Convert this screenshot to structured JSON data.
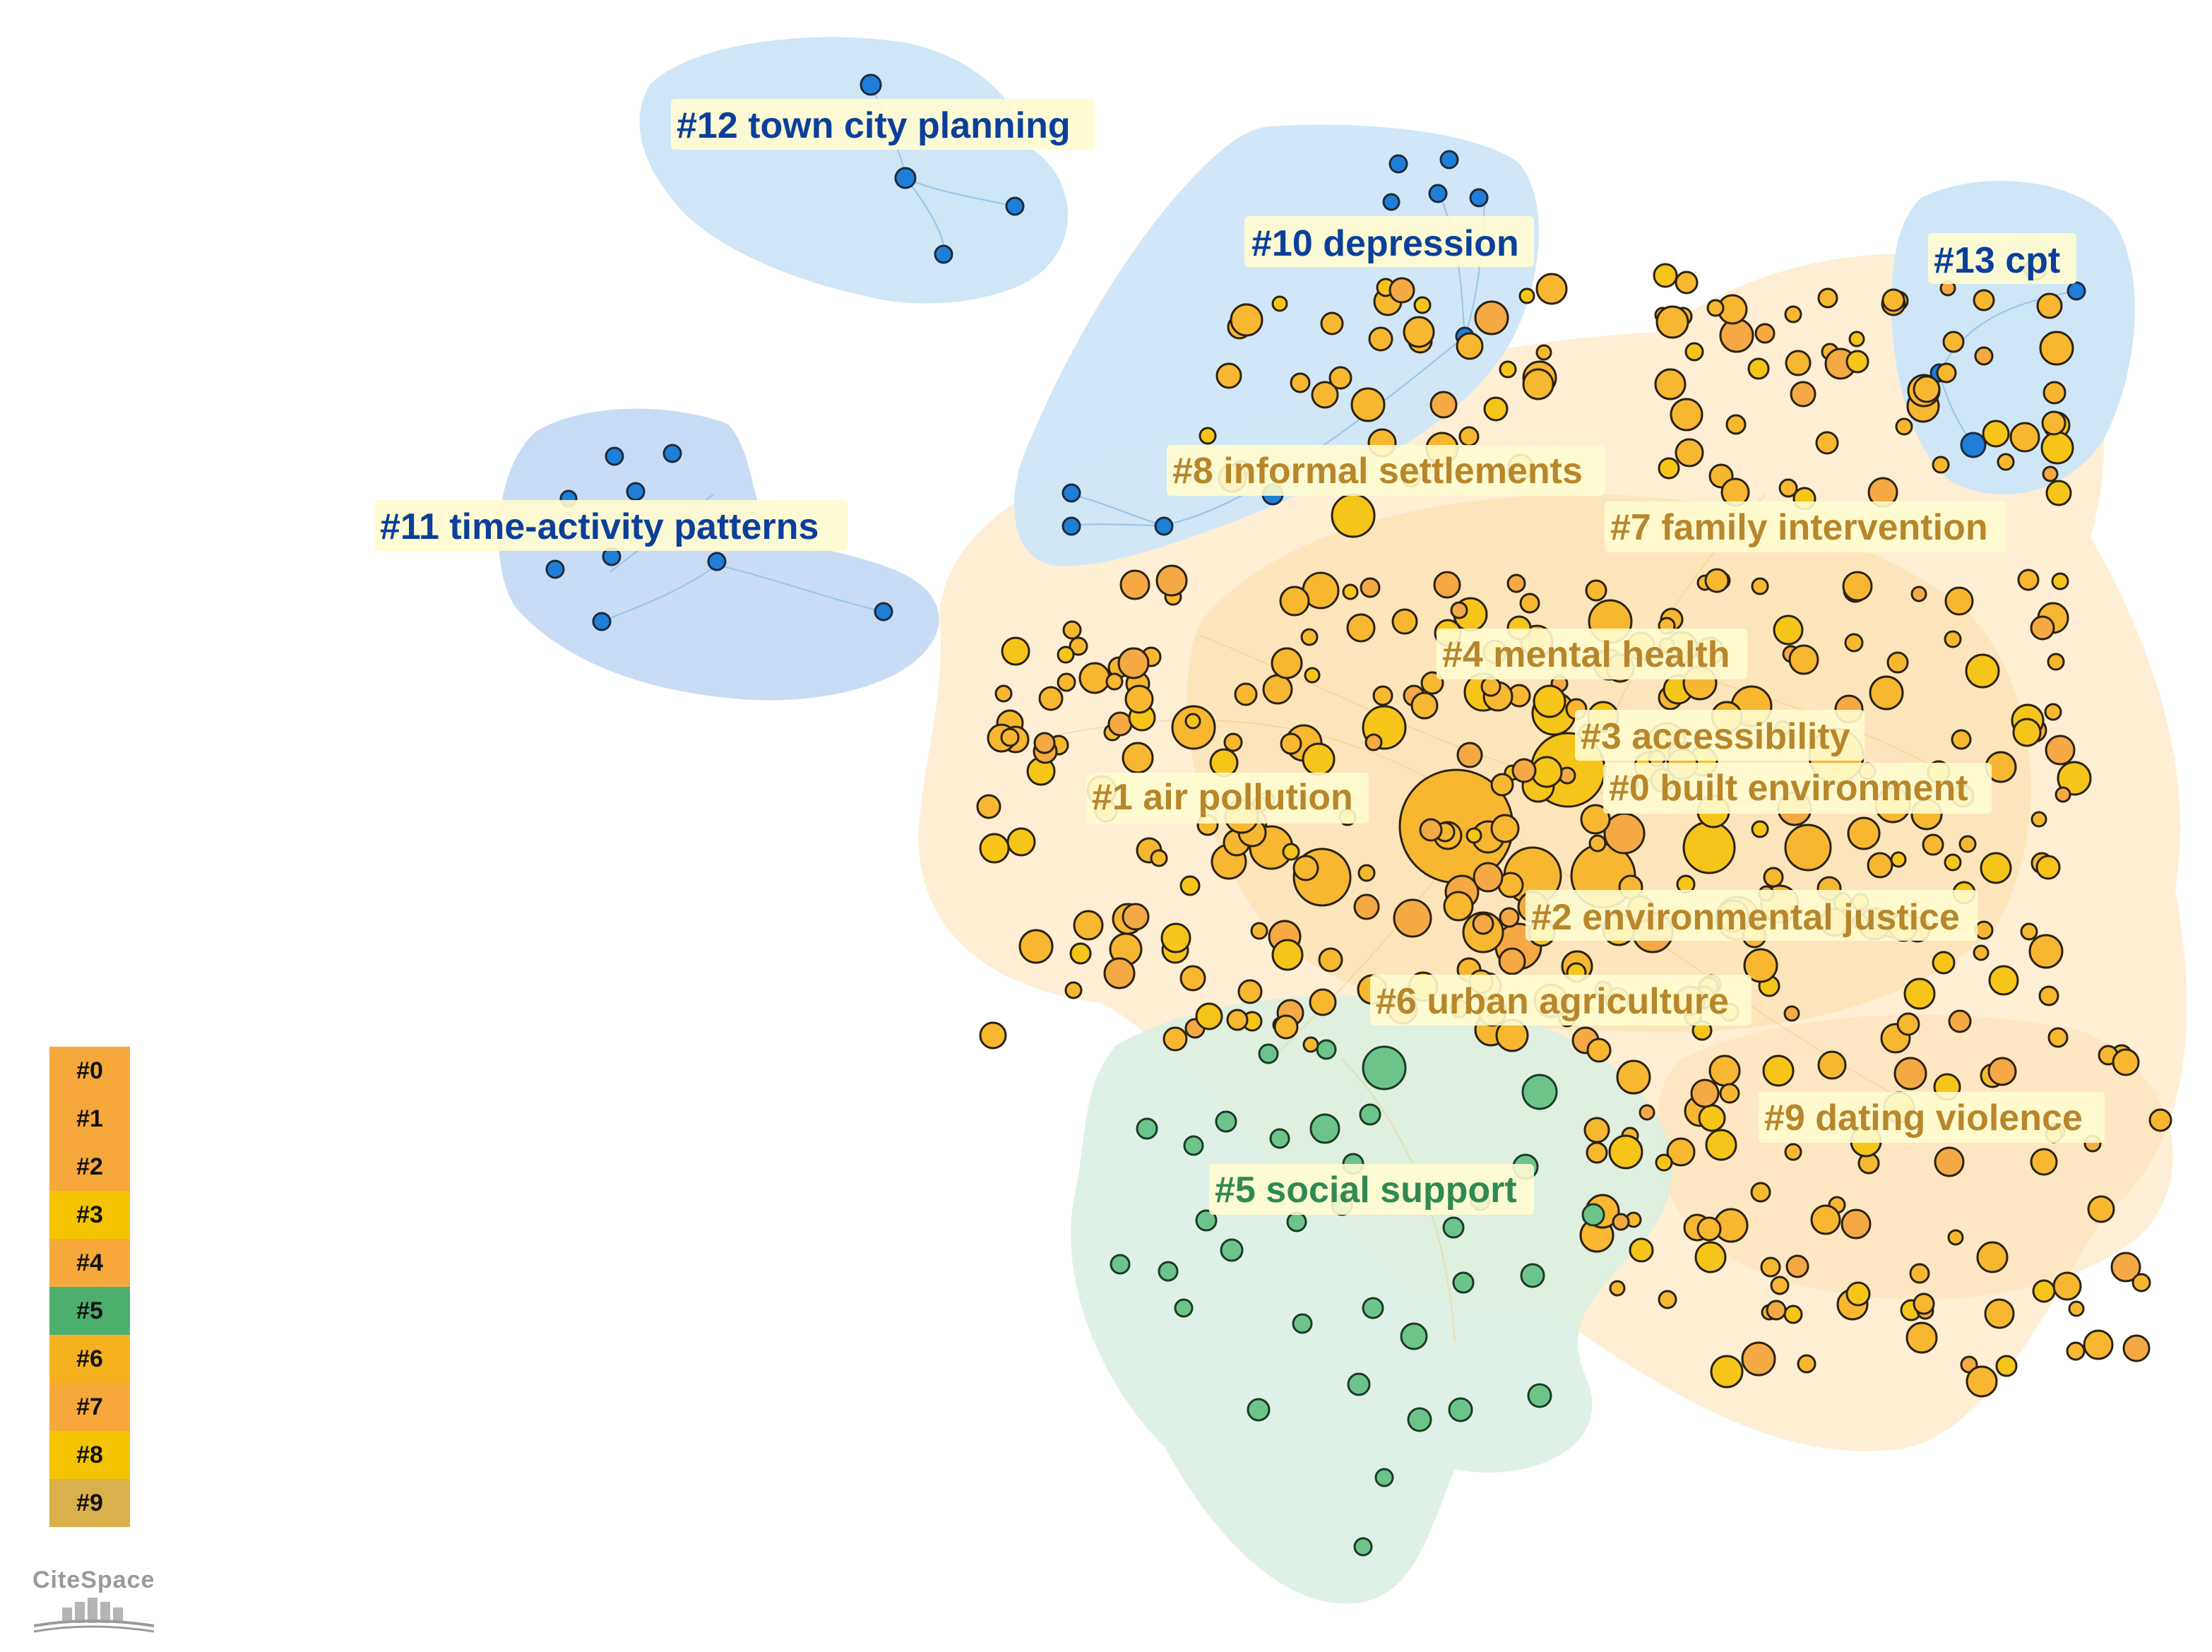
{
  "clusters": [
    {
      "id": "#0",
      "label": "#0 built environment",
      "color": "#f6a83a"
    },
    {
      "id": "#1",
      "label": "#1 air pollution",
      "color": "#f6a83a"
    },
    {
      "id": "#2",
      "label": "#2 environmental justice",
      "color": "#f6a83a"
    },
    {
      "id": "#3",
      "label": "#3 accessibility",
      "color": "#f5c400"
    },
    {
      "id": "#4",
      "label": "#4 mental health",
      "color": "#f6a83a"
    },
    {
      "id": "#5",
      "label": "#5 social support",
      "color": "#4caf6e"
    },
    {
      "id": "#6",
      "label": "#6 urban agriculture",
      "color": "#f6b21e"
    },
    {
      "id": "#7",
      "label": "#7 family intervention",
      "color": "#f6a83a"
    },
    {
      "id": "#8",
      "label": "#8 informal settlements",
      "color": "#f5c400"
    },
    {
      "id": "#9",
      "label": "#9 dating violence",
      "color": "#d9b04a"
    },
    {
      "id": "#10",
      "label": "#10 depression",
      "color": "#1e78d6"
    },
    {
      "id": "#11",
      "label": "#11 time-activity patterns",
      "color": "#1e78d6"
    },
    {
      "id": "#12",
      "label": "#12 town city planning",
      "color": "#1e78d6"
    },
    {
      "id": "#13",
      "label": "#13 cpt",
      "color": "#1e78d6"
    }
  ],
  "legend": [
    {
      "label": "#0",
      "color": "#f6a83a"
    },
    {
      "label": "#1",
      "color": "#f6a83a"
    },
    {
      "label": "#2",
      "color": "#f6a83a"
    },
    {
      "label": "#3",
      "color": "#f5c400"
    },
    {
      "label": "#4",
      "color": "#f6a83a"
    },
    {
      "label": "#5",
      "color": "#4caf6e"
    },
    {
      "label": "#6",
      "color": "#f6b21e"
    },
    {
      "label": "#7",
      "color": "#f6a83a"
    },
    {
      "label": "#8",
      "color": "#f5c400"
    },
    {
      "label": "#9",
      "color": "#d9b04a"
    }
  ],
  "logo_text": "CiteSpace",
  "colors": {
    "blue_hull": "#cfe6f7",
    "orange_hull": "#fde3b8",
    "green_hull": "#d9efe2",
    "label_bg": "#fffccf",
    "blue_label_text": "#0b3f9a",
    "orange_label_text": "#b8862b",
    "green_label_text": "#2f8a52"
  }
}
